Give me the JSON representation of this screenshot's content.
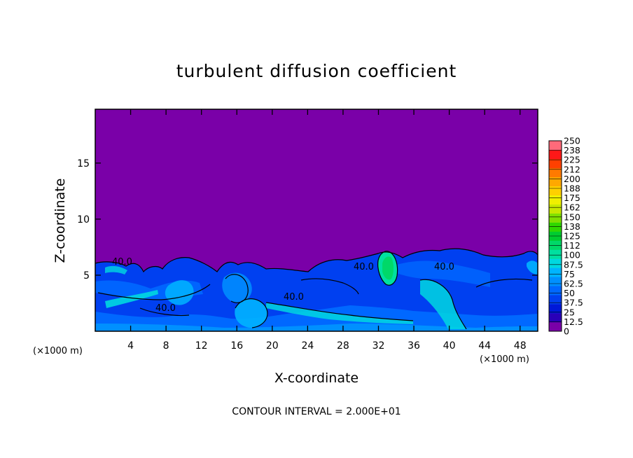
{
  "chart_data": {
    "type": "heatmap",
    "title": "turbulent diffusion coefficient",
    "xlabel": "X-coordinate",
    "ylabel": "Z-coordinate",
    "x_unit": "(×1000 m)",
    "y_unit": "(×1000 m)",
    "xlim": [
      0,
      50
    ],
    "ylim": [
      0,
      19.8
    ],
    "x_ticks": [
      4,
      8,
      12,
      16,
      20,
      24,
      28,
      32,
      36,
      40,
      44,
      48
    ],
    "y_ticks": [
      5,
      10,
      15
    ],
    "colorbar": {
      "levels": [
        "0",
        "12.5",
        "25",
        "37.5",
        "50",
        "62.5",
        "75",
        "87.5",
        "100",
        "112",
        "125",
        "138",
        "150",
        "162",
        "175",
        "188",
        "200",
        "212",
        "225",
        "238",
        "250"
      ],
      "colors": [
        "#7a00a8",
        "#2a00b8",
        "#0018d8",
        "#0040f0",
        "#0068ff",
        "#0090ff",
        "#00b4ff",
        "#00d8e0",
        "#00e0a0",
        "#00d868",
        "#00cc30",
        "#30d800",
        "#80e000",
        "#c8e800",
        "#f0f000",
        "#ffd000",
        "#ffa800",
        "#ff7a00",
        "#ff4000",
        "#ff1818",
        "#ff6a7a"
      ]
    },
    "contour_labels": [
      "40.0",
      "40.0",
      "40.0",
      "40.0",
      "40.0"
    ],
    "contour_interval": 20.0
  },
  "footer": {
    "contour_interval_text": "CONTOUR INTERVAL = 2.000E+01"
  }
}
